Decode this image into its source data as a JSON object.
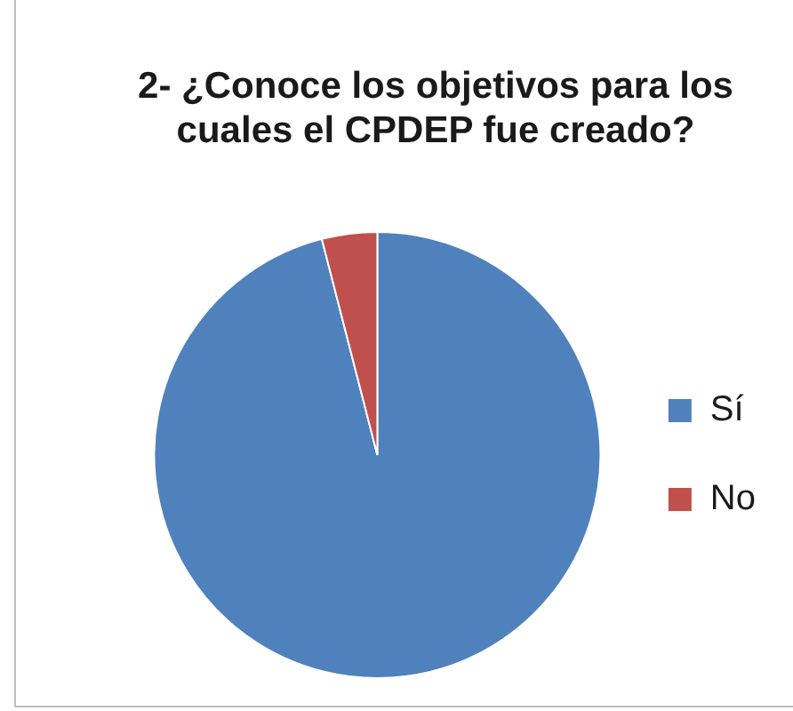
{
  "chart_data": {
    "type": "pie",
    "title": "2- ¿Conoce los objetivos para los cuales el CPDEP fue creado?",
    "categories": [
      "Sí",
      "No"
    ],
    "values": [
      96,
      4
    ],
    "colors": [
      "#4f81bd",
      "#c0504d"
    ],
    "legend": "right"
  }
}
